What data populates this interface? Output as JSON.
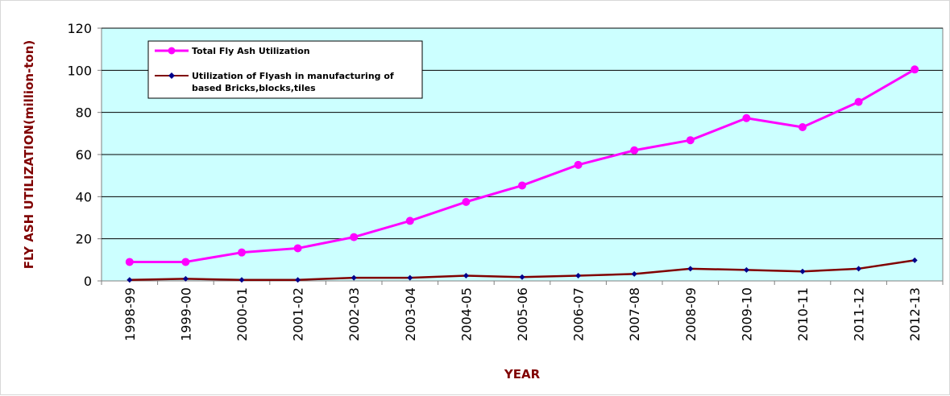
{
  "chart_data": {
    "type": "line",
    "title": "",
    "xlabel": "YEAR",
    "ylabel": "FLY ASH UTILIZATION(million-ton)",
    "categories": [
      "1998-99",
      "1999-00",
      "2000-01",
      "2001-02",
      "2002-03",
      "2003-04",
      "2004-05",
      "2005-06",
      "2006-07",
      "2007-08",
      "2008-09",
      "2009-10",
      "2010-11",
      "2011-12",
      "2012-13"
    ],
    "ylim": [
      0,
      120
    ],
    "yticks": [
      0,
      20,
      40,
      60,
      80,
      100,
      120
    ],
    "grid": true,
    "legend_position": "top-left",
    "plot_background": "#ccffff",
    "series": [
      {
        "name": "Total Fly Ash Utilization",
        "color": "#ff00ff",
        "marker": "circle",
        "values": [
          9,
          9,
          13.5,
          15.5,
          20.8,
          28.5,
          37.5,
          45.3,
          55.1,
          62,
          66.8,
          77.3,
          73,
          85,
          100.4
        ]
      },
      {
        "name": "Utilization of Flyash in manufacturing of based Bricks,blocks,tiles",
        "name_lines": [
          "Utilization of Flyash in manufacturing of",
          "based Bricks,blocks,tiles"
        ],
        "color": "#800000",
        "marker_color": "#00008b",
        "marker": "diamond",
        "values": [
          0.5,
          1,
          0.5,
          0.5,
          1.5,
          1.5,
          2.5,
          1.8,
          2.5,
          3.3,
          5.8,
          5.2,
          4.5,
          5.8,
          9.8
        ]
      }
    ]
  }
}
